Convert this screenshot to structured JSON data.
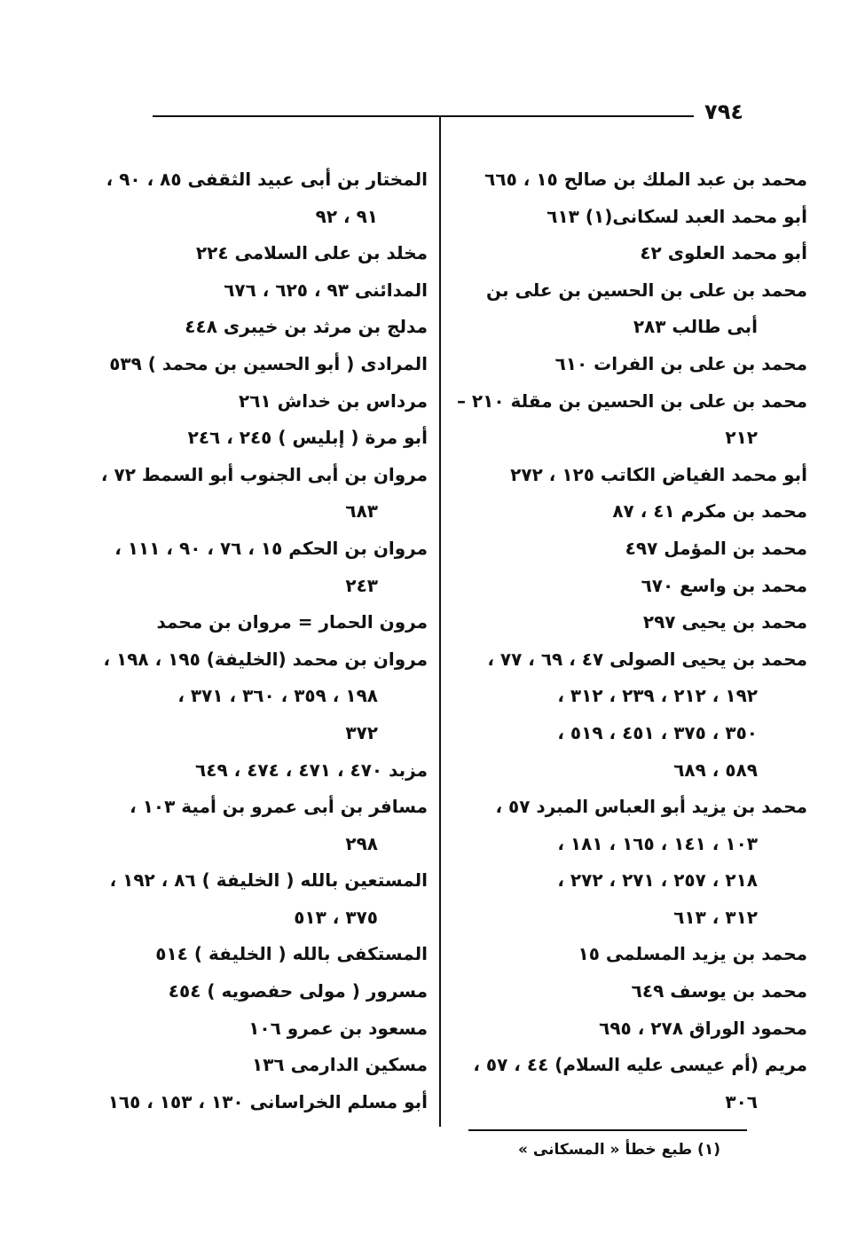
{
  "page_number": "٧٩٤",
  "right_column": [
    {
      "lines": [
        "محمد بن عبد الملك بن صالح ١٥ ، ٦٦٥"
      ]
    },
    {
      "lines": [
        "أبو محمد العبد لسكانى(١) ٦١٣"
      ]
    },
    {
      "lines": [
        "أبو محمد العلوى ٤٢"
      ]
    },
    {
      "lines": [
        "محمد بن على بن الحسين بن على بن",
        "أبى طالب ٢٨٣"
      ]
    },
    {
      "lines": [
        "محمد بن على بن الفرات ٦١٠"
      ]
    },
    {
      "lines": [
        "محمد بن على بن الحسين بن مقلة ٢١٠ –",
        "٢١٢"
      ]
    },
    {
      "lines": [
        "أبو محمد الفياض الكاتب ١٢٥ ، ٢٧٢"
      ]
    },
    {
      "lines": [
        "محمد بن مكرم ٤١ ، ٨٧"
      ]
    },
    {
      "lines": [
        "محمد بن المؤمل ٤٩٧"
      ]
    },
    {
      "lines": [
        "محمد بن واسع ٦٧٠"
      ]
    },
    {
      "lines": [
        "محمد بن يحيى ٢٩٧"
      ]
    },
    {
      "lines": [
        "محمد بن يحيى الصولى ٤٧ ، ٦٩ ، ٧٧ ،",
        "١٩٢ ، ٢١٢ ، ٢٣٩ ، ٣١٢ ،",
        "٣٥٠ ، ٣٧٥ ، ٤٥١ ، ٥١٩ ،",
        "٥٨٩ ، ٦٨٩"
      ]
    },
    {
      "lines": [
        "محمد بن يزيد أبو العباس المبرد ٥٧ ،",
        "١٠٣ ، ١٤١ ، ١٦٥ ، ١٨١ ،",
        "٢١٨ ، ٢٥٧ ، ٢٧١ ، ٢٧٢ ،",
        "٣١٢ ، ٦١٣"
      ]
    },
    {
      "lines": [
        "محمد بن يزيد المسلمى ١٥"
      ]
    },
    {
      "lines": [
        "محمد بن يوسف ٦٤٩"
      ]
    },
    {
      "lines": [
        "محمود الوراق ٢٧٨ ، ٦٩٥"
      ]
    },
    {
      "lines": [
        "مريم (أم عيسى عليه السلام) ٤٤ ، ٥٧ ،",
        "٣٠٦"
      ]
    }
  ],
  "left_column": [
    {
      "lines": [
        "المختار بن أبى عبيد الثقفى ٨٥ ، ٩٠ ،",
        "٩١ ، ٩٢"
      ]
    },
    {
      "lines": [
        "مخلد بن على السلامى ٢٢٤"
      ]
    },
    {
      "lines": [
        "المدائنى ٩٣ ، ٦٢٥ ، ٦٧٦"
      ]
    },
    {
      "lines": [
        "مدلج بن مرثد بن خيبرى ٤٤٨"
      ]
    },
    {
      "lines": [
        "المرادى ( أبو الحسين بن محمد ) ٥٣٩"
      ]
    },
    {
      "lines": [
        "مرداس بن خداش ٢٦١"
      ]
    },
    {
      "lines": [
        "أبو مرة ( إبليس ) ٢٤٥ ، ٢٤٦"
      ]
    },
    {
      "lines": [
        "مروان بن أبى الجنوب أبو السمط ٧٢ ،",
        "٦٨٣"
      ]
    },
    {
      "lines": [
        "مروان بن الحكم ١٥ ، ٧٦ ، ٩٠ ، ١١١ ،",
        "٢٤٣"
      ]
    },
    {
      "lines": [
        "مرون الحمار = مروان بن محمد"
      ]
    },
    {
      "lines": [
        "مروان بن محمد (الخليفة) ١٩٥ ، ١٩٨ ،",
        "١٩٨ ، ٣٥٩ ، ٣٦٠ ، ٣٧١ ،",
        "٣٧٢"
      ]
    },
    {
      "lines": [
        "مزبد ٤٧٠ ، ٤٧١ ، ٤٧٤ ، ٦٤٩"
      ]
    },
    {
      "lines": [
        "مسافر بن أبى عمرو بن أمية ١٠٣ ،",
        "٢٩٨"
      ]
    },
    {
      "lines": [
        "المستعين بالله ( الخليفة ) ٨٦ ، ١٩٢ ،",
        "٣٧٥ ، ٥١٣"
      ]
    },
    {
      "lines": [
        "المستكفى بالله ( الخليفة ) ٥١٤"
      ]
    },
    {
      "lines": [
        "مسرور ( مولى حفصويه ) ٤٥٤"
      ]
    },
    {
      "lines": [
        "مسعود بن عمرو ١٠٦"
      ]
    },
    {
      "lines": [
        "مسكين الدارمى ١٣٦"
      ]
    },
    {
      "lines": [
        "أبو مسلم الخراسانى ١٣٠ ، ١٥٣ ، ١٦٥"
      ]
    }
  ],
  "footnote": "(١) طبع خطأ « المسكانى »"
}
